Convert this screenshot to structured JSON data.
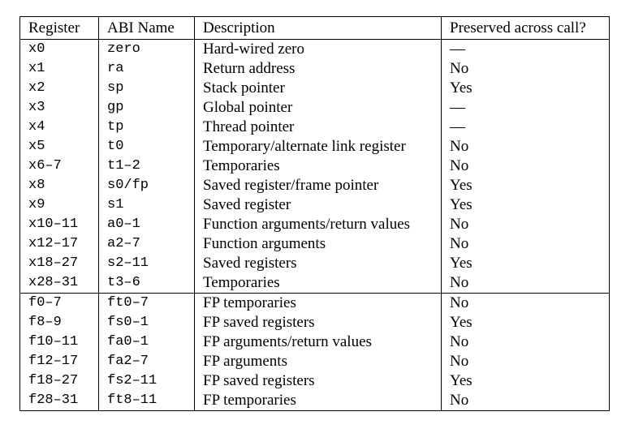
{
  "table": {
    "headers": {
      "register": "Register",
      "abi_name": "ABI Name",
      "description": "Description",
      "preserved": "Preserved across call?"
    },
    "integer_rows": [
      {
        "register": "x0",
        "abi": "zero",
        "description": "Hard-wired zero",
        "preserved": "—"
      },
      {
        "register": "x1",
        "abi": "ra",
        "description": "Return address",
        "preserved": "No"
      },
      {
        "register": "x2",
        "abi": "sp",
        "description": "Stack pointer",
        "preserved": "Yes"
      },
      {
        "register": "x3",
        "abi": "gp",
        "description": "Global pointer",
        "preserved": "—"
      },
      {
        "register": "x4",
        "abi": "tp",
        "description": "Thread pointer",
        "preserved": "—"
      },
      {
        "register": "x5",
        "abi": "t0",
        "description": "Temporary/alternate link register",
        "preserved": "No"
      },
      {
        "register": "x6–7",
        "abi": "t1–2",
        "description": "Temporaries",
        "preserved": "No"
      },
      {
        "register": "x8",
        "abi": "s0/fp",
        "description": "Saved register/frame pointer",
        "preserved": "Yes"
      },
      {
        "register": "x9",
        "abi": "s1",
        "description": "Saved register",
        "preserved": "Yes"
      },
      {
        "register": "x10–11",
        "abi": "a0–1",
        "description": "Function arguments/return values",
        "preserved": "No"
      },
      {
        "register": "x12–17",
        "abi": "a2–7",
        "description": "Function arguments",
        "preserved": "No"
      },
      {
        "register": "x18–27",
        "abi": "s2–11",
        "description": "Saved registers",
        "preserved": "Yes"
      },
      {
        "register": "x28–31",
        "abi": "t3–6",
        "description": "Temporaries",
        "preserved": "No"
      }
    ],
    "fp_rows": [
      {
        "register": "f0–7",
        "abi": "ft0–7",
        "description": "FP temporaries",
        "preserved": "No"
      },
      {
        "register": "f8–9",
        "abi": "fs0–1",
        "description": "FP saved registers",
        "preserved": "Yes"
      },
      {
        "register": "f10–11",
        "abi": "fa0–1",
        "description": "FP arguments/return values",
        "preserved": "No"
      },
      {
        "register": "f12–17",
        "abi": "fa2–7",
        "description": "FP arguments",
        "preserved": "No"
      },
      {
        "register": "f18–27",
        "abi": "fs2–11",
        "description": "FP saved registers",
        "preserved": "Yes"
      },
      {
        "register": "f28–31",
        "abi": "ft8–11",
        "description": "FP temporaries",
        "preserved": "No"
      }
    ]
  }
}
